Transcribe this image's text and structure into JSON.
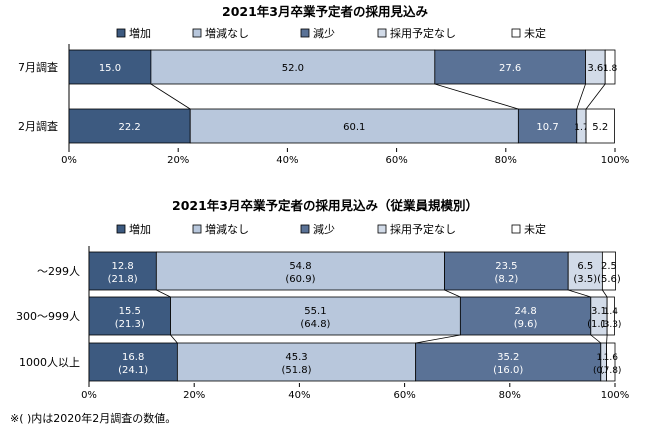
{
  "note": "※(    )内は2020年2月調査の数値。",
  "colors": [
    "#3d5a80",
    "#b8c7dc",
    "#5a7296",
    "#d2dbe8",
    "#ffffff"
  ],
  "chart_data": [
    {
      "type": "bar",
      "orientation": "horizontal",
      "stacked": "percent",
      "title": "2021年3月卒業予定者の採用見込み",
      "legend": [
        "増加",
        "増減なし",
        "減少",
        "採用予定なし",
        "未定"
      ],
      "legend_position": "top",
      "categories": [
        "7月調査",
        "2月調査"
      ],
      "series": [
        {
          "name": "増加",
          "values": [
            15.0,
            22.2
          ]
        },
        {
          "name": "増減なし",
          "values": [
            52.0,
            60.1
          ]
        },
        {
          "name": "減少",
          "values": [
            27.6,
            10.7
          ]
        },
        {
          "name": "採用予定なし",
          "values": [
            3.6,
            1.7
          ]
        },
        {
          "name": "未定",
          "values": [
            1.8,
            5.2
          ]
        }
      ],
      "value_labels": [
        [
          "15.0",
          "22.2"
        ],
        [
          "52.0",
          "60.1"
        ],
        [
          "27.6",
          "10.7"
        ],
        [
          "3.6",
          "1.7"
        ],
        [
          "1.8",
          "5.2"
        ]
      ],
      "x_ticks": [
        "0%",
        "20%",
        "40%",
        "60%",
        "80%",
        "100%"
      ],
      "xlim": [
        0,
        100
      ]
    },
    {
      "type": "bar",
      "orientation": "horizontal",
      "stacked": "percent",
      "title": "2021年3月卒業予定者の採用見込み（従業員規模別）",
      "legend": [
        "増加",
        "増減なし",
        "減少",
        "採用予定なし",
        "未定"
      ],
      "legend_position": "top",
      "categories": [
        "～299人",
        "300～999人",
        "1000人以上"
      ],
      "series": [
        {
          "name": "増加",
          "values": [
            12.8,
            15.5,
            16.8
          ],
          "previous": [
            21.8,
            21.3,
            24.1
          ]
        },
        {
          "name": "増減なし",
          "values": [
            54.8,
            55.1,
            45.3
          ],
          "previous": [
            60.9,
            64.8,
            51.8
          ]
        },
        {
          "name": "減少",
          "values": [
            23.5,
            24.8,
            35.2
          ],
          "previous": [
            8.2,
            9.6,
            16.0
          ]
        },
        {
          "name": "採用予定なし",
          "values": [
            6.5,
            3.1,
            1.1
          ],
          "previous": [
            3.5,
            1.1,
            0.3
          ]
        },
        {
          "name": "未定",
          "values": [
            2.5,
            1.4,
            1.6
          ],
          "previous": [
            5.6,
            3.3,
            7.8
          ]
        }
      ],
      "value_labels": [
        [
          "12.8",
          "15.5",
          "16.8"
        ],
        [
          "54.8",
          "55.1",
          "45.3"
        ],
        [
          "23.5",
          "24.8",
          "35.2"
        ],
        [
          "6.5",
          "3.1",
          "1.1"
        ],
        [
          "2.5",
          "1.4",
          "1.6"
        ]
      ],
      "previous_labels": [
        [
          "(21.8)",
          "(21.3)",
          "(24.1)"
        ],
        [
          "(60.9)",
          "(64.8)",
          "(51.8)"
        ],
        [
          "(8.2)",
          "(9.6)",
          "(16.0)"
        ],
        [
          "(3.5)",
          "(1.1)",
          "(0.3)"
        ],
        [
          "(5.6)",
          "(3.3)",
          "(7.8)"
        ]
      ],
      "x_ticks": [
        "0%",
        "20%",
        "40%",
        "60%",
        "80%",
        "100%"
      ],
      "xlim": [
        0,
        100
      ]
    }
  ]
}
